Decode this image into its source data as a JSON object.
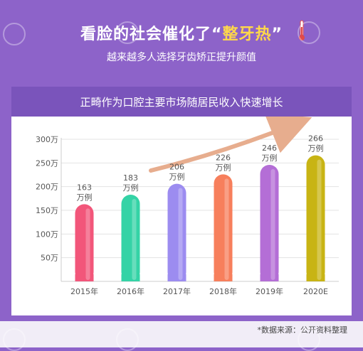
{
  "header": {
    "headline_pre": "看脸的社会催化了",
    "headline_quote_open": "“",
    "headline_hot": "整牙热",
    "headline_quote_close": "”",
    "subheadline": "越来越多人选择牙齿矫正提升颜值"
  },
  "chart_data": {
    "type": "bar",
    "title": "正畸作为口腔主要市场随居民收入快速增长",
    "categories": [
      "2015年",
      "2016年",
      "2017年",
      "2018年",
      "2019年",
      "2020E"
    ],
    "values": [
      163,
      183,
      206,
      226,
      246,
      266
    ],
    "value_unit": "万例",
    "yticks": [
      "50万",
      "100万",
      "150万",
      "200万",
      "250万",
      "300万"
    ],
    "ytick_values": [
      50,
      100,
      150,
      200,
      250,
      300
    ],
    "ylim": [
      0,
      300
    ],
    "grid": true,
    "bar_colors": [
      "#f2567a",
      "#34d3a6",
      "#9c8cf0",
      "#f77f5c",
      "#b46ed6",
      "#c8b414"
    ],
    "trend_arrow": true
  },
  "footer": {
    "source": "*数据来源：公开资料整理"
  },
  "colors": {
    "background": "#8d63c9",
    "title_bar": "#7a54bb",
    "accent_yellow": "#ffd84a",
    "arrow": "#e7ad8e"
  }
}
